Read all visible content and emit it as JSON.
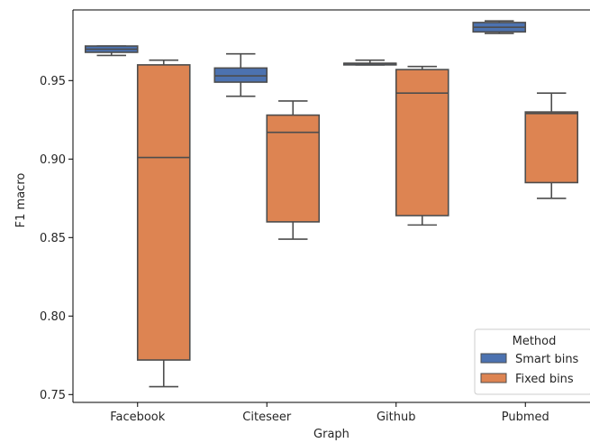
{
  "chart_data": {
    "type": "box",
    "title": "",
    "xlabel": "Graph",
    "ylabel": "F1 macro",
    "categories": [
      "Facebook",
      "Citeseer",
      "Github",
      "Pubmed"
    ],
    "ylim": [
      0.745,
      0.995
    ],
    "yticks": [
      0.75,
      0.8,
      0.85,
      0.9,
      0.95
    ],
    "ytick_labels": [
      "0.75",
      "0.80",
      "0.85",
      "0.90",
      "0.95"
    ],
    "grid": false,
    "legend": {
      "title": "Method",
      "placement": "lower-right"
    },
    "series": [
      {
        "name": "Smart bins",
        "color": "#4c72b0",
        "boxes": [
          {
            "whisker_low": 0.966,
            "q1": 0.968,
            "median": 0.97,
            "q3": 0.972,
            "whisker_high": 0.972
          },
          {
            "whisker_low": 0.94,
            "q1": 0.949,
            "median": 0.953,
            "q3": 0.958,
            "whisker_high": 0.967
          },
          {
            "whisker_low": 0.96,
            "q1": 0.96,
            "median": 0.961,
            "q3": 0.961,
            "whisker_high": 0.963
          },
          {
            "whisker_low": 0.98,
            "q1": 0.981,
            "median": 0.984,
            "q3": 0.987,
            "whisker_high": 0.988
          }
        ]
      },
      {
        "name": "Fixed bins",
        "color": "#dd8452",
        "boxes": [
          {
            "whisker_low": 0.755,
            "q1": 0.772,
            "median": 0.901,
            "q3": 0.96,
            "whisker_high": 0.963
          },
          {
            "whisker_low": 0.849,
            "q1": 0.86,
            "median": 0.917,
            "q3": 0.928,
            "whisker_high": 0.937
          },
          {
            "whisker_low": 0.858,
            "q1": 0.864,
            "median": 0.942,
            "q3": 0.957,
            "whisker_high": 0.959
          },
          {
            "whisker_low": 0.875,
            "q1": 0.885,
            "median": 0.929,
            "q3": 0.93,
            "whisker_high": 0.942
          }
        ]
      }
    ]
  }
}
